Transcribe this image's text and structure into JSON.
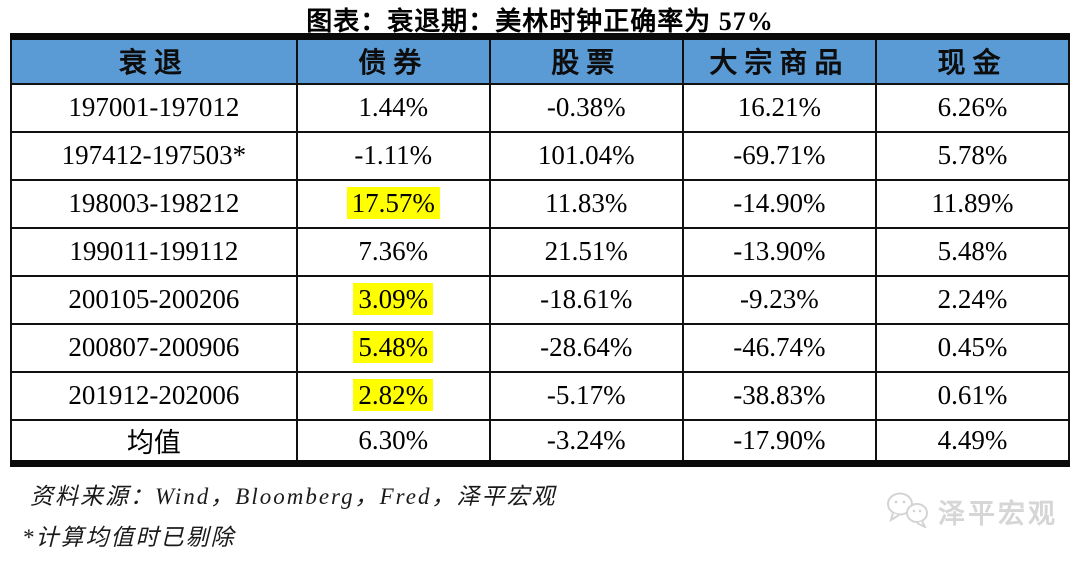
{
  "title": "图表：衰退期：美林时钟正确率为 57%",
  "chart_data": {
    "type": "table",
    "title": "图表：衰退期：美林时钟正确率为 57%",
    "columns": [
      "衰退",
      "债券",
      "股票",
      "大宗商品",
      "现金"
    ],
    "rows": [
      {
        "cells": [
          "197001-197012",
          "1.44%",
          "-0.38%",
          "16.21%",
          "6.26%"
        ],
        "highlight_col": null
      },
      {
        "cells": [
          "197412-197503*",
          "-1.11%",
          "101.04%",
          "-69.71%",
          "5.78%"
        ],
        "highlight_col": null
      },
      {
        "cells": [
          "198003-198212",
          "17.57%",
          "11.83%",
          "-14.90%",
          "11.89%"
        ],
        "highlight_col": 1
      },
      {
        "cells": [
          "199011-199112",
          "7.36%",
          "21.51%",
          "-13.90%",
          "5.48%"
        ],
        "highlight_col": null
      },
      {
        "cells": [
          "200105-200206",
          "3.09%",
          "-18.61%",
          "-9.23%",
          "2.24%"
        ],
        "highlight_col": 1
      },
      {
        "cells": [
          "200807-200906",
          "5.48%",
          "-28.64%",
          "-46.74%",
          "0.45%"
        ],
        "highlight_col": 1
      },
      {
        "cells": [
          "201912-202006",
          "2.82%",
          "-5.17%",
          "-38.83%",
          "0.61%"
        ],
        "highlight_col": 1
      },
      {
        "cells": [
          "均值",
          "6.30%",
          "-3.24%",
          "-17.90%",
          "4.49%"
        ],
        "highlight_col": null
      }
    ],
    "layout": {
      "header_bg": "#5b9bd5",
      "highlight_color": "#ffff00",
      "border_color": "#111111",
      "grid": true
    }
  },
  "footer": {
    "source": "资料来源：Wind，Bloomberg，Fred，泽平宏观",
    "note": "*计算均值时已剔除"
  },
  "watermark": {
    "icon": "wechat-icon",
    "label": "泽平宏观"
  }
}
